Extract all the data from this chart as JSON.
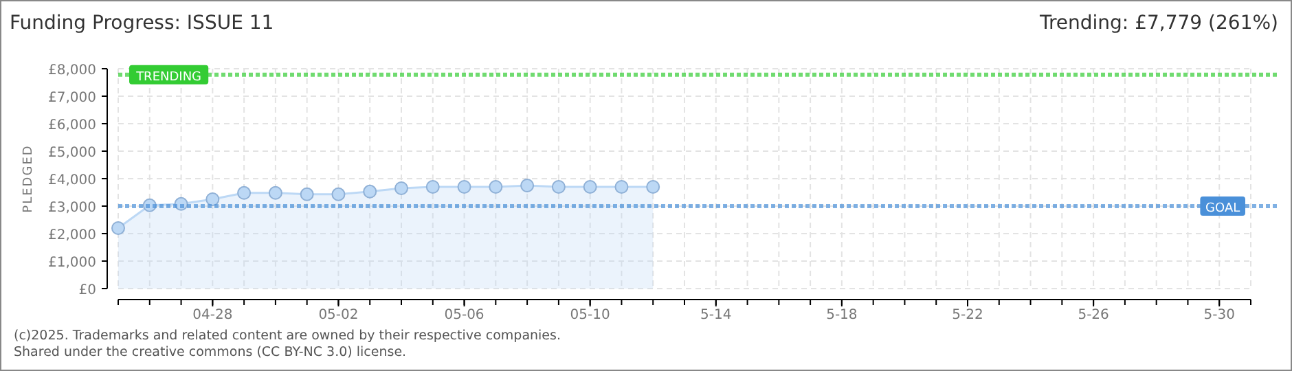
{
  "chart_data": {
    "type": "area",
    "title": "Funding Progress: ISSUE 11",
    "subtitle": "Trending: £7,779 (261%)",
    "ylabel": "PLEDGED",
    "annotations": [
      "(c)2025. Trademarks and related content are owned by their respective companies.",
      "Shared under the creative commons (CC BY-NC 3.0) license."
    ],
    "x": [
      "2025-04-25",
      "2025-04-26",
      "2025-04-27",
      "2025-04-28",
      "2025-04-29",
      "2025-04-30",
      "2025-05-01",
      "2025-05-02",
      "2025-05-03",
      "2025-05-04",
      "2025-05-05",
      "2025-05-06",
      "2025-05-07",
      "2025-05-08",
      "2025-05-09",
      "2025-05-10",
      "2025-05-11",
      "2025-05-12"
    ],
    "series": [
      {
        "color": "#bcd8f5",
        "values": [
          2200,
          3030,
          3080,
          3250,
          3480,
          3480,
          3430,
          3430,
          3530,
          3650,
          3700,
          3700,
          3700,
          3750,
          3700,
          3700,
          3700,
          3700
        ]
      }
    ],
    "xlim": [
      "2025-04-25",
      "2025-05-31"
    ],
    "xticks": [
      {
        "value": "2025-04-28",
        "label": "04-28"
      },
      {
        "value": "2025-05-02",
        "label": "05-02"
      },
      {
        "value": "2025-05-06",
        "label": "05-06"
      },
      {
        "value": "2025-05-10",
        "label": "05-10"
      },
      {
        "value": "2025-05-14",
        "label": "5-14"
      },
      {
        "value": "2025-05-18",
        "label": "5-18"
      },
      {
        "value": "2025-05-22",
        "label": "5-22"
      },
      {
        "value": "2025-05-26",
        "label": "5-26"
      },
      {
        "value": "2025-05-30",
        "label": "5-30"
      }
    ],
    "ylim": [
      0,
      8000
    ],
    "yticks": [
      {
        "value": 0,
        "label": "£0"
      },
      {
        "value": 1000,
        "label": "£1,000"
      },
      {
        "value": 2000,
        "label": "£2,000"
      },
      {
        "value": 3000,
        "label": "£3,000"
      },
      {
        "value": 4000,
        "label": "£4,000"
      },
      {
        "value": 5000,
        "label": "£5,000"
      },
      {
        "value": 6000,
        "label": "£6,000"
      },
      {
        "value": 7000,
        "label": "£7,000"
      },
      {
        "value": 8000,
        "label": "£8,000"
      }
    ],
    "ref_lines": [
      {
        "axis": "y",
        "value": 7779,
        "label": "TRENDING",
        "color": "#33cc33",
        "line_style": "dotted"
      },
      {
        "axis": "y",
        "value": 3000,
        "label": "GOAL",
        "color": "#4a90d9",
        "line_style": "dotted"
      }
    ],
    "grid": true,
    "marker": "circle"
  }
}
